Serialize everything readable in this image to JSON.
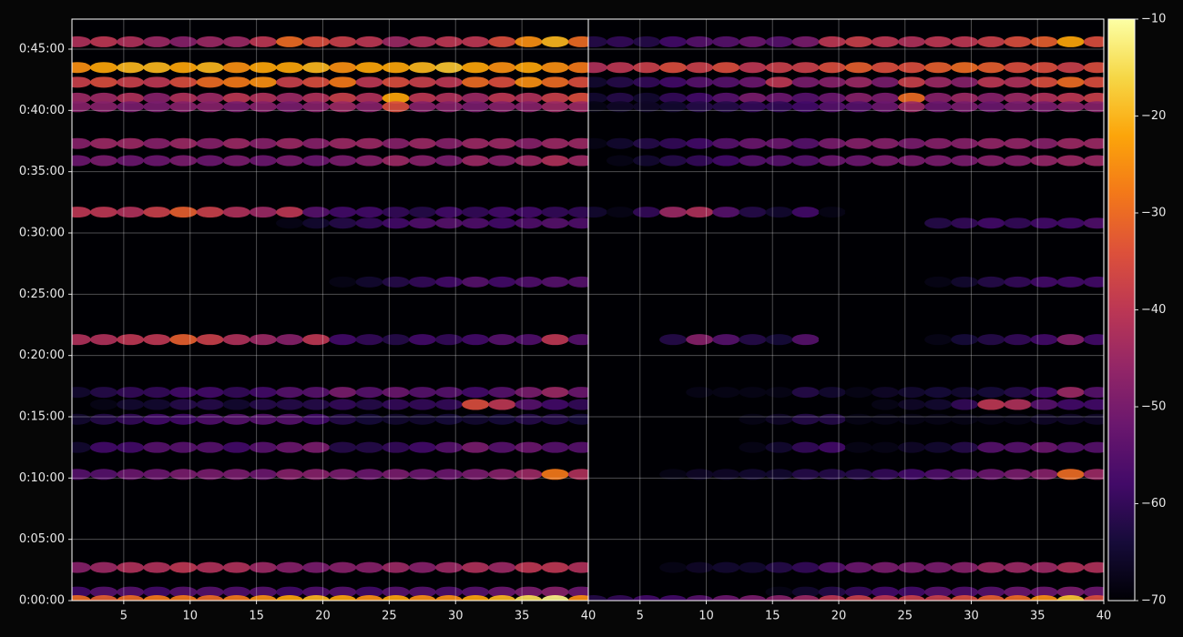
{
  "chart_data": {
    "type": "heatmap",
    "colormap": "inferno",
    "grid": true,
    "x": [
      1.5,
      3.5,
      5.5,
      7.5,
      9.5,
      11.5,
      13.5,
      15.5,
      17.5,
      19.5,
      21.5,
      23.5,
      25.5,
      27.5,
      29.5,
      31.5,
      33.5,
      35.5,
      37.5,
      39.5
    ],
    "xlim": [
      1.1,
      40
    ],
    "xticks": [
      5,
      10,
      15,
      20,
      25,
      30,
      35,
      40
    ],
    "ylim": [
      0,
      2847
    ],
    "yticks": [
      {
        "value": 0,
        "label": "0:00:00"
      },
      {
        "value": 300,
        "label": "0:05:00"
      },
      {
        "value": 600,
        "label": "0:10:00"
      },
      {
        "value": 900,
        "label": "0:15:00"
      },
      {
        "value": 1200,
        "label": "0:20:00"
      },
      {
        "value": 1500,
        "label": "0:25:00"
      },
      {
        "value": 1800,
        "label": "0:30:00"
      },
      {
        "value": 2100,
        "label": "0:35:00"
      },
      {
        "value": 2400,
        "label": "0:40:00"
      },
      {
        "value": 2700,
        "label": "0:45:00"
      }
    ],
    "clim": [
      -70,
      -10
    ],
    "cticks": [
      {
        "value": -70,
        "label": "−70"
      },
      {
        "value": -60,
        "label": "−60"
      },
      {
        "value": -50,
        "label": "−50"
      },
      {
        "value": -40,
        "label": "−40"
      },
      {
        "value": -30,
        "label": "−30"
      },
      {
        "value": -20,
        "label": "−20"
      },
      {
        "value": -10,
        "label": "−10"
      }
    ],
    "panels": [
      {
        "rows": [
          {
            "y": 2736,
            "values": [
              -42,
              -40,
              -42,
              -45,
              -48,
              -45,
              -45,
              -40,
              -30,
              -35,
              -38,
              -40,
              -45,
              -42,
              -40,
              -40,
              -35,
              -25,
              -20,
              -30
            ]
          },
          {
            "y": 2610,
            "values": [
              -25,
              -22,
              -20,
              -20,
              -22,
              -20,
              -25,
              -22,
              -22,
              -20,
              -25,
              -22,
              -22,
              -20,
              -18,
              -22,
              -25,
              -22,
              -25,
              -28
            ]
          },
          {
            "y": 2538,
            "values": [
              -38,
              -35,
              -38,
              -40,
              -35,
              -30,
              -28,
              -25,
              -38,
              -35,
              -28,
              -40,
              -35,
              -38,
              -40,
              -30,
              -35,
              -25,
              -30,
              -35
            ]
          },
          {
            "y": 2460,
            "values": [
              -45,
              -45,
              -42,
              -48,
              -42,
              -45,
              -40,
              -42,
              -45,
              -42,
              -38,
              -42,
              -22,
              -40,
              -42,
              -45,
              -40,
              -42,
              -38,
              -35
            ]
          },
          {
            "y": 2418,
            "values": [
              -48,
              -48,
              -50,
              -50,
              -48,
              -48,
              -50,
              -48,
              -50,
              -48,
              -45,
              -48,
              -35,
              -48,
              -48,
              -50,
              -48,
              -48,
              -45,
              -45
            ]
          },
          {
            "y": 2238,
            "values": [
              -48,
              -45,
              -45,
              -48,
              -45,
              -48,
              -45,
              -48,
              -45,
              -48,
              -45,
              -45,
              -48,
              -45,
              -48,
              -45,
              -45,
              -48,
              -45,
              -45
            ]
          },
          {
            "y": 2154,
            "values": [
              -52,
              -50,
              -52,
              -52,
              -50,
              -52,
              -50,
              -52,
              -50,
              -52,
              -50,
              -48,
              -45,
              -48,
              -50,
              -45,
              -48,
              -45,
              -42,
              -45
            ]
          },
          {
            "y": 1902,
            "values": [
              -40,
              -40,
              -42,
              -38,
              -32,
              -38,
              -42,
              -45,
              -40,
              -55,
              -58,
              -58,
              -60,
              -62,
              -58,
              -60,
              -58,
              -58,
              -60,
              -60
            ]
          },
          {
            "y": 1848,
            "values": [
              -70,
              -70,
              -70,
              -70,
              -70,
              -70,
              -70,
              -70,
              -68,
              -65,
              -62,
              -60,
              -58,
              -56,
              -55,
              -56,
              -58,
              -56,
              -55,
              -56
            ]
          },
          {
            "y": 1560,
            "values": [
              -70,
              -70,
              -70,
              -70,
              -70,
              -70,
              -70,
              -70,
              -70,
              -70,
              -68,
              -65,
              -62,
              -60,
              -58,
              -55,
              -58,
              -56,
              -55,
              -55
            ]
          },
          {
            "y": 1278,
            "values": [
              -42,
              -42,
              -40,
              -40,
              -32,
              -38,
              -42,
              -45,
              -48,
              -40,
              -58,
              -60,
              -62,
              -58,
              -60,
              -58,
              -55,
              -56,
              -40,
              -55
            ]
          },
          {
            "y": 1020,
            "values": [
              -65,
              -62,
              -60,
              -60,
              -58,
              -58,
              -60,
              -58,
              -55,
              -55,
              -50,
              -55,
              -52,
              -55,
              -55,
              -58,
              -55,
              -50,
              -45,
              -52
            ]
          },
          {
            "y": 960,
            "values": [
              -70,
              -68,
              -65,
              -65,
              -62,
              -62,
              -65,
              -62,
              -62,
              -62,
              -60,
              -62,
              -60,
              -60,
              -60,
              -35,
              -40,
              -55,
              -58,
              -60
            ]
          },
          {
            "y": 888,
            "values": [
              -65,
              -62,
              -60,
              -58,
              -58,
              -56,
              -55,
              -55,
              -55,
              -58,
              -62,
              -64,
              -65,
              -65,
              -64,
              -65,
              -64,
              -62,
              -62,
              -64
            ]
          },
          {
            "y": 750,
            "values": [
              -65,
              -58,
              -58,
              -55,
              -55,
              -55,
              -58,
              -55,
              -52,
              -50,
              -62,
              -62,
              -60,
              -58,
              -55,
              -50,
              -55,
              -52,
              -55,
              -55
            ]
          },
          {
            "y": 618,
            "values": [
              -55,
              -55,
              -52,
              -52,
              -50,
              -50,
              -50,
              -52,
              -48,
              -48,
              -50,
              -52,
              -50,
              -52,
              -52,
              -50,
              -48,
              -45,
              -28,
              -42
            ]
          },
          {
            "y": 162,
            "values": [
              -48,
              -45,
              -42,
              -42,
              -40,
              -42,
              -42,
              -45,
              -48,
              -50,
              -48,
              -48,
              -45,
              -48,
              -45,
              -42,
              -45,
              -40,
              -40,
              -42
            ]
          },
          {
            "y": 42,
            "values": [
              -58,
              -55,
              -55,
              -58,
              -55,
              -55,
              -56,
              -55,
              -58,
              -56,
              -55,
              -58,
              -55,
              -55,
              -56,
              -55,
              -52,
              -50,
              -48,
              -52
            ]
          },
          {
            "y": 0,
            "values": [
              -30,
              -32,
              -30,
              -28,
              -28,
              -30,
              -28,
              -25,
              -22,
              -20,
              -22,
              -25,
              -22,
              -25,
              -25,
              -22,
              -20,
              -15,
              -12,
              -25
            ]
          }
        ]
      },
      {
        "rows": [
          {
            "y": 2736,
            "values": [
              -62,
              -60,
              -62,
              -58,
              -55,
              -55,
              -52,
              -55,
              -50,
              -40,
              -38,
              -40,
              -42,
              -40,
              -40,
              -38,
              -35,
              -32,
              -22,
              -35
            ]
          },
          {
            "y": 2610,
            "values": [
              -42,
              -40,
              -38,
              -35,
              -38,
              -35,
              -40,
              -38,
              -38,
              -35,
              -32,
              -35,
              -35,
              -32,
              -30,
              -32,
              -35,
              -35,
              -38,
              -35
            ]
          },
          {
            "y": 2538,
            "values": [
              -65,
              -62,
              -60,
              -58,
              -55,
              -55,
              -52,
              -40,
              -50,
              -48,
              -45,
              -50,
              -38,
              -45,
              -48,
              -40,
              -42,
              -35,
              -30,
              -35
            ]
          },
          {
            "y": 2460,
            "values": [
              -65,
              -62,
              -65,
              -60,
              -58,
              -55,
              -50,
              -52,
              -55,
              -52,
              -48,
              -50,
              -30,
              -48,
              -45,
              -48,
              -45,
              -42,
              -40,
              -38
            ]
          },
          {
            "y": 2418,
            "values": [
              -68,
              -66,
              -66,
              -65,
              -62,
              -62,
              -60,
              -60,
              -58,
              -55,
              -55,
              -52,
              -45,
              -52,
              -50,
              -52,
              -50,
              -50,
              -48,
              -48
            ]
          },
          {
            "y": 2238,
            "values": [
              -68,
              -65,
              -62,
              -60,
              -58,
              -55,
              -52,
              -52,
              -55,
              -50,
              -48,
              -48,
              -50,
              -48,
              -48,
              -46,
              -46,
              -48,
              -45,
              -45
            ]
          },
          {
            "y": 2154,
            "values": [
              -70,
              -68,
              -65,
              -62,
              -60,
              -58,
              -55,
              -55,
              -55,
              -52,
              -52,
              -50,
              -50,
              -50,
              -50,
              -48,
              -48,
              -46,
              -45,
              -45
            ]
          },
          {
            "y": 1902,
            "values": [
              -65,
              -68,
              -60,
              -45,
              -42,
              -55,
              -62,
              -65,
              -58,
              -68,
              -70,
              -70,
              -70,
              -70,
              -70,
              -70,
              -70,
              -70,
              -70,
              -70
            ]
          },
          {
            "y": 1848,
            "values": [
              -70,
              -70,
              -70,
              -70,
              -70,
              -70,
              -70,
              -70,
              -70,
              -70,
              -70,
              -70,
              -70,
              -62,
              -60,
              -58,
              -60,
              -58,
              -58,
              -56
            ]
          },
          {
            "y": 1560,
            "values": [
              -70,
              -70,
              -70,
              -70,
              -70,
              -70,
              -70,
              -70,
              -70,
              -70,
              -70,
              -70,
              -70,
              -68,
              -65,
              -62,
              -60,
              -58,
              -58,
              -58
            ]
          },
          {
            "y": 1278,
            "values": [
              -70,
              -70,
              -70,
              -62,
              -48,
              -55,
              -62,
              -64,
              -55,
              -70,
              -70,
              -70,
              -70,
              -68,
              -64,
              -62,
              -60,
              -58,
              -48,
              -58
            ]
          },
          {
            "y": 1020,
            "values": [
              -70,
              -70,
              -70,
              -70,
              -68,
              -68,
              -68,
              -68,
              -62,
              -65,
              -68,
              -66,
              -65,
              -64,
              -65,
              -64,
              -62,
              -58,
              -45,
              -55
            ]
          },
          {
            "y": 960,
            "values": [
              -70,
              -70,
              -70,
              -70,
              -70,
              -70,
              -70,
              -70,
              -70,
              -70,
              -70,
              -68,
              -66,
              -65,
              -60,
              -40,
              -42,
              -55,
              -58,
              -58
            ]
          },
          {
            "y": 888,
            "values": [
              -70,
              -70,
              -70,
              -70,
              -70,
              -70,
              -68,
              -66,
              -62,
              -62,
              -68,
              -68,
              -68,
              -68,
              -68,
              -68,
              -68,
              -66,
              -66,
              -66
            ]
          },
          {
            "y": 750,
            "values": [
              -70,
              -70,
              -70,
              -70,
              -70,
              -70,
              -68,
              -65,
              -60,
              -58,
              -68,
              -68,
              -66,
              -65,
              -62,
              -55,
              -55,
              -52,
              -55,
              -55
            ]
          },
          {
            "y": 618,
            "values": [
              -70,
              -70,
              -70,
              -68,
              -66,
              -66,
              -65,
              -65,
              -62,
              -62,
              -62,
              -60,
              -58,
              -56,
              -55,
              -52,
              -50,
              -48,
              -30,
              -45
            ]
          },
          {
            "y": 162,
            "values": [
              -70,
              -70,
              -70,
              -68,
              -66,
              -65,
              -65,
              -62,
              -60,
              -55,
              -52,
              -50,
              -50,
              -50,
              -48,
              -45,
              -45,
              -45,
              -42,
              -42
            ]
          },
          {
            "y": 42,
            "values": [
              -70,
              -70,
              -70,
              -70,
              -70,
              -70,
              -70,
              -68,
              -65,
              -62,
              -60,
              -58,
              -58,
              -55,
              -56,
              -55,
              -52,
              -52,
              -50,
              -52
            ]
          },
          {
            "y": 0,
            "values": [
              -62,
              -60,
              -58,
              -58,
              -55,
              -52,
              -50,
              -48,
              -45,
              -40,
              -38,
              -40,
              -38,
              -38,
              -35,
              -32,
              -30,
              -25,
              -18,
              -35
            ]
          }
        ]
      }
    ]
  }
}
